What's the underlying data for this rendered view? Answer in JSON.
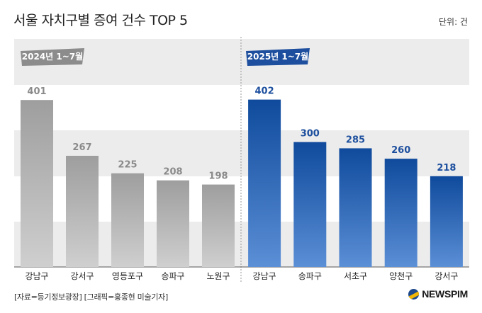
{
  "header": {
    "title": "서울 자치구별 증여 건수 TOP 5",
    "unit": "단위: 건"
  },
  "footer": {
    "source": "[자료=등기정보광장] [그래픽=홍종현 미술기자]",
    "logo_text": "NEWSPIM"
  },
  "colors": {
    "series_2024": "#a3a3a3",
    "series_2025": "#1f5bb0",
    "band": "#ececec",
    "tag_2024": "#8c8c8c",
    "tag_2025": "#1d4f9e"
  },
  "chart_data": [
    {
      "type": "bar",
      "title": "2024년 1~7월",
      "categories": [
        "강남구",
        "강서구",
        "영등포구",
        "송파구",
        "노원구"
      ],
      "values": [
        401,
        267,
        225,
        208,
        198
      ],
      "value_labels": [
        "401",
        "267",
        "225",
        "208",
        "198"
      ],
      "ylim": [
        0,
        450
      ],
      "grid": false
    },
    {
      "type": "bar",
      "title": "2025년 1~7월",
      "categories": [
        "강남구",
        "송파구",
        "서초구",
        "양천구",
        "강서구"
      ],
      "values": [
        402,
        300,
        285,
        260,
        218
      ],
      "value_labels": [
        "402",
        "300",
        "285",
        "260",
        "218"
      ],
      "ylim": [
        0,
        450
      ],
      "grid": false
    }
  ]
}
